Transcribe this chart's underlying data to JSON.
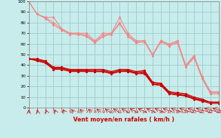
{
  "xlabel": "Vent moyen/en rafales ( km/h )",
  "x": [
    0,
    1,
    2,
    3,
    4,
    5,
    6,
    7,
    8,
    9,
    10,
    11,
    12,
    13,
    14,
    15,
    16,
    17,
    18,
    19,
    20,
    21,
    22,
    23
  ],
  "light_lines": [
    [
      100,
      88,
      85,
      85,
      74,
      70,
      70,
      70,
      63,
      70,
      70,
      85,
      70,
      63,
      63,
      50,
      63,
      60,
      63,
      40,
      49,
      29,
      15,
      15
    ],
    [
      100,
      88,
      85,
      80,
      74,
      70,
      70,
      68,
      62,
      68,
      70,
      80,
      68,
      62,
      63,
      50,
      63,
      59,
      62,
      39,
      48,
      28,
      14,
      14
    ],
    [
      100,
      88,
      84,
      78,
      73,
      69,
      69,
      67,
      61,
      67,
      69,
      79,
      67,
      61,
      62,
      49,
      62,
      58,
      61,
      38,
      47,
      27,
      13,
      13
    ]
  ],
  "dark_lines": [
    [
      46,
      46,
      44,
      38,
      38,
      36,
      36,
      36,
      36,
      36,
      34,
      36,
      36,
      34,
      35,
      24,
      23,
      15,
      14,
      13,
      10,
      8,
      5,
      5
    ],
    [
      46,
      45,
      43,
      37,
      37,
      35,
      35,
      35,
      35,
      35,
      33,
      35,
      35,
      33,
      34,
      23,
      22,
      14,
      13,
      12,
      9,
      7,
      5,
      5
    ],
    [
      46,
      45,
      43,
      37,
      37,
      35,
      35,
      35,
      34,
      34,
      32,
      34,
      35,
      32,
      33,
      22,
      21,
      13,
      12,
      11,
      8,
      7,
      5,
      5
    ],
    [
      46,
      44,
      42,
      36,
      36,
      34,
      34,
      34,
      34,
      34,
      32,
      34,
      34,
      32,
      32,
      22,
      21,
      13,
      12,
      11,
      8,
      6,
      4,
      4
    ]
  ],
  "background_color": "#c8ecec",
  "grid_color": "#a0cece",
  "light_line_color": "#f08888",
  "dark_line_color": "#cc0000",
  "ylim": [
    0,
    100
  ],
  "xlim": [
    0,
    23
  ],
  "yticks": [
    0,
    10,
    20,
    30,
    40,
    50,
    60,
    70,
    80,
    90,
    100
  ],
  "xticks": [
    0,
    1,
    2,
    3,
    4,
    5,
    6,
    7,
    8,
    9,
    10,
    11,
    12,
    13,
    14,
    15,
    16,
    17,
    18,
    19,
    20,
    21,
    22,
    23
  ]
}
